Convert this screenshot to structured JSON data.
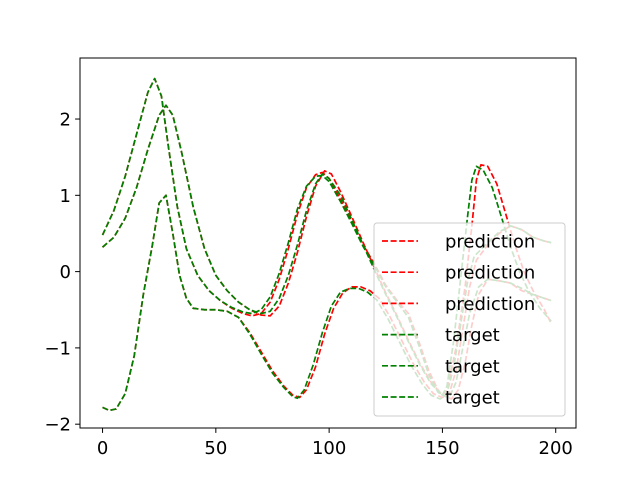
{
  "chart_data": {
    "type": "line",
    "xlim": [
      -9.95,
      208.95
    ],
    "ylim": [
      -2.05,
      2.8
    ],
    "x_ticks": [
      0,
      50,
      100,
      150,
      200
    ],
    "y_ticks": [
      -2,
      -1,
      0,
      1,
      2
    ],
    "x_tick_labels": [
      "0",
      "50",
      "100",
      "150",
      "200"
    ],
    "y_tick_labels": [
      "−2",
      "−1",
      "0",
      "1",
      "2"
    ],
    "legend": {
      "position": "center-right"
    },
    "colors": {
      "prediction": "#ff0000",
      "target": "#008000"
    },
    "series": [
      {
        "name": "prediction",
        "group": "prediction",
        "points": [
          [
            0,
            0.32
          ],
          [
            5,
            0.45
          ],
          [
            10,
            0.7
          ],
          [
            15,
            1.1
          ],
          [
            20,
            1.6
          ],
          [
            25,
            2.05
          ],
          [
            28,
            2.18
          ],
          [
            31,
            2.05
          ],
          [
            35,
            1.55
          ],
          [
            40,
            0.85
          ],
          [
            45,
            0.3
          ],
          [
            50,
            -0.05
          ],
          [
            55,
            -0.25
          ],
          [
            60,
            -0.4
          ],
          [
            65,
            -0.5
          ],
          [
            70,
            -0.57
          ],
          [
            74,
            -0.58
          ],
          [
            78,
            -0.45
          ],
          [
            82,
            -0.15
          ],
          [
            86,
            0.25
          ],
          [
            90,
            0.72
          ],
          [
            94,
            1.12
          ],
          [
            98,
            1.32
          ],
          [
            101,
            1.28
          ],
          [
            105,
            1.05
          ],
          [
            110,
            0.72
          ],
          [
            115,
            0.38
          ],
          [
            120,
            0.05
          ],
          [
            125,
            -0.28
          ],
          [
            130,
            -0.58
          ],
          [
            135,
            -0.9
          ],
          [
            140,
            -1.2
          ],
          [
            145,
            -1.45
          ],
          [
            150,
            -1.62
          ],
          [
            154,
            -1.67
          ],
          [
            157,
            -1.55
          ],
          [
            160,
            -1.2
          ],
          [
            163,
            -0.7
          ],
          [
            166,
            -0.3
          ],
          [
            170,
            -0.1
          ],
          [
            175,
            -0.12
          ],
          [
            180,
            -0.15
          ],
          [
            185,
            -0.25
          ],
          [
            190,
            -0.3
          ],
          [
            195,
            -0.35
          ],
          [
            198,
            -0.38
          ]
        ]
      },
      {
        "name": "prediction",
        "group": "prediction",
        "points": [
          [
            0,
            0.48
          ],
          [
            5,
            0.8
          ],
          [
            10,
            1.25
          ],
          [
            15,
            1.8
          ],
          [
            20,
            2.35
          ],
          [
            23,
            2.53
          ],
          [
            26,
            2.3
          ],
          [
            29,
            1.65
          ],
          [
            33,
            0.85
          ],
          [
            37,
            0.3
          ],
          [
            42,
            -0.05
          ],
          [
            47,
            -0.25
          ],
          [
            52,
            -0.38
          ],
          [
            57,
            -0.48
          ],
          [
            62,
            -0.55
          ],
          [
            66,
            -0.58
          ],
          [
            70,
            -0.55
          ],
          [
            74,
            -0.4
          ],
          [
            78,
            -0.1
          ],
          [
            82,
            0.3
          ],
          [
            86,
            0.75
          ],
          [
            90,
            1.1
          ],
          [
            94,
            1.27
          ],
          [
            97,
            1.3
          ],
          [
            100,
            1.22
          ],
          [
            105,
            0.95
          ],
          [
            110,
            0.65
          ],
          [
            115,
            0.35
          ],
          [
            120,
            0.1
          ],
          [
            125,
            -0.18
          ],
          [
            130,
            -0.38
          ],
          [
            135,
            -0.55
          ],
          [
            140,
            -0.95
          ],
          [
            144,
            -1.3
          ],
          [
            148,
            -1.55
          ],
          [
            150,
            -1.62
          ],
          [
            152,
            -1.55
          ],
          [
            156,
            -1.0
          ],
          [
            160,
            -0.2
          ],
          [
            163,
            0.6
          ],
          [
            165,
            1.2
          ],
          [
            167,
            1.4
          ],
          [
            170,
            1.38
          ],
          [
            174,
            1.15
          ],
          [
            178,
            0.75
          ],
          [
            182,
            0.35
          ],
          [
            186,
            0.0
          ],
          [
            190,
            -0.25
          ],
          [
            195,
            -0.5
          ],
          [
            198,
            -0.68
          ]
        ]
      },
      {
        "name": "prediction",
        "group": "prediction",
        "points": [
          [
            0,
            -1.78
          ],
          [
            3,
            -1.82
          ],
          [
            6,
            -1.8
          ],
          [
            10,
            -1.6
          ],
          [
            14,
            -1.1
          ],
          [
            18,
            -0.3
          ],
          [
            22,
            0.35
          ],
          [
            25,
            0.9
          ],
          [
            28,
            1.0
          ],
          [
            31,
            0.5
          ],
          [
            34,
            -0.05
          ],
          [
            37,
            -0.35
          ],
          [
            40,
            -0.48
          ],
          [
            45,
            -0.5
          ],
          [
            50,
            -0.5
          ],
          [
            55,
            -0.52
          ],
          [
            60,
            -0.6
          ],
          [
            65,
            -0.8
          ],
          [
            70,
            -1.05
          ],
          [
            75,
            -1.3
          ],
          [
            80,
            -1.5
          ],
          [
            84,
            -1.62
          ],
          [
            87,
            -1.65
          ],
          [
            90,
            -1.55
          ],
          [
            94,
            -1.25
          ],
          [
            98,
            -0.82
          ],
          [
            102,
            -0.48
          ],
          [
            106,
            -0.28
          ],
          [
            110,
            -0.2
          ],
          [
            114,
            -0.2
          ],
          [
            118,
            -0.25
          ],
          [
            122,
            -0.35
          ],
          [
            127,
            -0.6
          ],
          [
            132,
            -0.9
          ],
          [
            137,
            -1.2
          ],
          [
            142,
            -1.45
          ],
          [
            146,
            -1.6
          ],
          [
            150,
            -1.65
          ],
          [
            153,
            -1.6
          ],
          [
            156,
            -1.3
          ],
          [
            159,
            -0.75
          ],
          [
            162,
            -0.2
          ],
          [
            165,
            0.15
          ],
          [
            170,
            0.35
          ],
          [
            175,
            0.5
          ],
          [
            180,
            0.6
          ],
          [
            185,
            0.55
          ],
          [
            190,
            0.45
          ],
          [
            195,
            0.4
          ],
          [
            198,
            0.38
          ]
        ]
      },
      {
        "name": "target",
        "group": "target",
        "points": [
          [
            0,
            0.32
          ],
          [
            5,
            0.45
          ],
          [
            10,
            0.7
          ],
          [
            15,
            1.1
          ],
          [
            20,
            1.6
          ],
          [
            25,
            2.05
          ],
          [
            28,
            2.18
          ],
          [
            31,
            2.05
          ],
          [
            35,
            1.55
          ],
          [
            40,
            0.85
          ],
          [
            45,
            0.3
          ],
          [
            50,
            -0.05
          ],
          [
            55,
            -0.25
          ],
          [
            60,
            -0.4
          ],
          [
            65,
            -0.5
          ],
          [
            70,
            -0.55
          ],
          [
            74,
            -0.52
          ],
          [
            78,
            -0.35
          ],
          [
            82,
            -0.05
          ],
          [
            86,
            0.35
          ],
          [
            90,
            0.8
          ],
          [
            94,
            1.15
          ],
          [
            97,
            1.28
          ],
          [
            100,
            1.22
          ],
          [
            105,
            1.0
          ],
          [
            110,
            0.68
          ],
          [
            115,
            0.35
          ],
          [
            120,
            0.02
          ],
          [
            125,
            -0.3
          ],
          [
            130,
            -0.6
          ],
          [
            135,
            -0.92
          ],
          [
            140,
            -1.22
          ],
          [
            145,
            -1.47
          ],
          [
            150,
            -1.62
          ],
          [
            153,
            -1.65
          ],
          [
            156,
            -1.45
          ],
          [
            159,
            -1.0
          ],
          [
            162,
            -0.55
          ],
          [
            166,
            -0.2
          ],
          [
            170,
            -0.1
          ],
          [
            175,
            -0.12
          ],
          [
            180,
            -0.15
          ],
          [
            185,
            -0.22
          ],
          [
            190,
            -0.3
          ],
          [
            195,
            -0.35
          ],
          [
            198,
            -0.38
          ]
        ]
      },
      {
        "name": "target",
        "group": "target",
        "points": [
          [
            0,
            0.48
          ],
          [
            5,
            0.8
          ],
          [
            10,
            1.25
          ],
          [
            15,
            1.8
          ],
          [
            20,
            2.35
          ],
          [
            23,
            2.53
          ],
          [
            26,
            2.3
          ],
          [
            29,
            1.65
          ],
          [
            33,
            0.85
          ],
          [
            37,
            0.3
          ],
          [
            42,
            -0.05
          ],
          [
            47,
            -0.25
          ],
          [
            52,
            -0.38
          ],
          [
            57,
            -0.47
          ],
          [
            62,
            -0.53
          ],
          [
            66,
            -0.55
          ],
          [
            70,
            -0.5
          ],
          [
            74,
            -0.33
          ],
          [
            78,
            -0.02
          ],
          [
            82,
            0.38
          ],
          [
            86,
            0.82
          ],
          [
            90,
            1.12
          ],
          [
            94,
            1.25
          ],
          [
            97,
            1.26
          ],
          [
            100,
            1.18
          ],
          [
            105,
            0.92
          ],
          [
            110,
            0.63
          ],
          [
            115,
            0.33
          ],
          [
            120,
            0.08
          ],
          [
            125,
            -0.2
          ],
          [
            130,
            -0.4
          ],
          [
            135,
            -0.6
          ],
          [
            140,
            -1.0
          ],
          [
            144,
            -1.35
          ],
          [
            148,
            -1.58
          ],
          [
            150,
            -1.62
          ],
          [
            152,
            -1.5
          ],
          [
            155,
            -0.9
          ],
          [
            158,
            -0.1
          ],
          [
            161,
            0.7
          ],
          [
            163,
            1.2
          ],
          [
            165,
            1.38
          ],
          [
            168,
            1.33
          ],
          [
            172,
            1.1
          ],
          [
            176,
            0.72
          ],
          [
            180,
            0.33
          ],
          [
            184,
            0.0
          ],
          [
            188,
            -0.25
          ],
          [
            193,
            -0.48
          ],
          [
            198,
            -0.65
          ]
        ]
      },
      {
        "name": "target",
        "group": "target",
        "points": [
          [
            0,
            -1.78
          ],
          [
            3,
            -1.82
          ],
          [
            6,
            -1.8
          ],
          [
            10,
            -1.6
          ],
          [
            14,
            -1.1
          ],
          [
            18,
            -0.3
          ],
          [
            22,
            0.35
          ],
          [
            25,
            0.9
          ],
          [
            28,
            1.0
          ],
          [
            31,
            0.5
          ],
          [
            34,
            -0.05
          ],
          [
            37,
            -0.35
          ],
          [
            40,
            -0.48
          ],
          [
            45,
            -0.5
          ],
          [
            50,
            -0.5
          ],
          [
            55,
            -0.52
          ],
          [
            60,
            -0.6
          ],
          [
            65,
            -0.82
          ],
          [
            70,
            -1.08
          ],
          [
            75,
            -1.33
          ],
          [
            80,
            -1.52
          ],
          [
            84,
            -1.64
          ],
          [
            86,
            -1.66
          ],
          [
            89,
            -1.55
          ],
          [
            93,
            -1.22
          ],
          [
            97,
            -0.8
          ],
          [
            101,
            -0.45
          ],
          [
            105,
            -0.27
          ],
          [
            109,
            -0.22
          ],
          [
            113,
            -0.22
          ],
          [
            117,
            -0.27
          ],
          [
            121,
            -0.37
          ],
          [
            126,
            -0.62
          ],
          [
            131,
            -0.92
          ],
          [
            136,
            -1.22
          ],
          [
            141,
            -1.47
          ],
          [
            145,
            -1.62
          ],
          [
            149,
            -1.67
          ],
          [
            152,
            -1.6
          ],
          [
            155,
            -1.25
          ],
          [
            158,
            -0.7
          ],
          [
            161,
            -0.15
          ],
          [
            164,
            0.2
          ],
          [
            170,
            0.38
          ],
          [
            175,
            0.52
          ],
          [
            180,
            0.6
          ],
          [
            185,
            0.55
          ],
          [
            190,
            0.45
          ],
          [
            195,
            0.4
          ],
          [
            198,
            0.38
          ]
        ]
      }
    ]
  }
}
